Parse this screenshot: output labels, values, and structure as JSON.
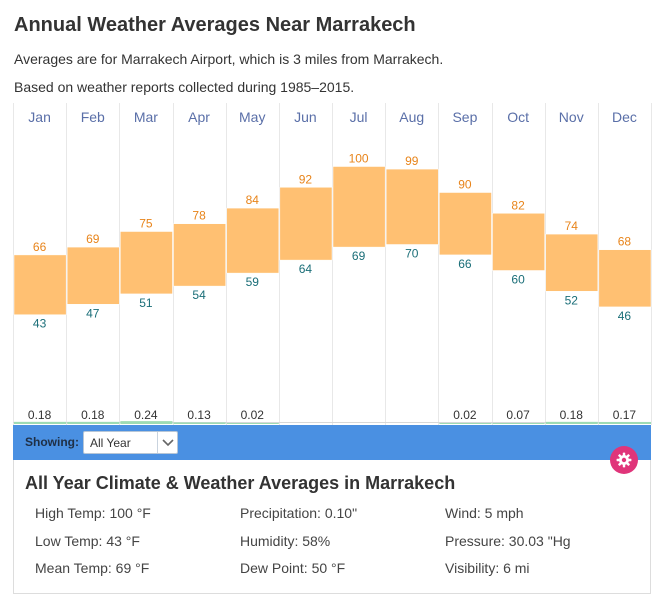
{
  "page": {
    "title": "Annual Weather Averages Near Marrakech",
    "subtitle1": "Averages are for Marrakech Airport, which is 3 miles from Marrakech.",
    "subtitle2": "Based on weather reports collected during 1985–2015."
  },
  "chart_data": {
    "type": "bar",
    "categories": [
      "Jan",
      "Feb",
      "Mar",
      "Apr",
      "May",
      "Jun",
      "Jul",
      "Aug",
      "Sep",
      "Oct",
      "Nov",
      "Dec"
    ],
    "series": [
      {
        "values": [
          66,
          69,
          75,
          78,
          84,
          92,
          100,
          99,
          90,
          82,
          74,
          68
        ]
      },
      {
        "values": [
          43,
          47,
          51,
          54,
          59,
          64,
          69,
          70,
          66,
          60,
          52,
          46
        ]
      },
      {
        "values": [
          "0.18",
          "0.18",
          "0.24",
          "0.13",
          "0.02",
          "",
          "",
          "",
          "0.02",
          "0.07",
          "0.18",
          "0.17"
        ]
      }
    ],
    "title": "",
    "xlabel": "",
    "ylabel": "",
    "grid": true,
    "colors": {
      "range_fill": "#ffc072",
      "high_label": "#e8841a",
      "low_label": "#1a6e78",
      "precip_fill": "#9edbb4",
      "month_label": "#5a6fa8",
      "grid": "#e8e8e8"
    }
  },
  "showing": {
    "label": "Showing:",
    "selected": "All Year"
  },
  "panel": {
    "title": "All Year Climate & Weather Averages in Marrakech",
    "stats": [
      "High Temp: 100 °F",
      "Precipitation: 0.10\"",
      "Wind: 5 mph",
      "Low Temp: 43 °F",
      "Humidity: 58%",
      "Pressure: 30.03 \"Hg",
      "Mean Temp: 69 °F",
      "Dew Point: 50 °F",
      "Visibility: 6 mi"
    ]
  },
  "icons": {
    "gear": "gear-icon",
    "dropdown": "chevron-down-icon"
  },
  "colors": {
    "accent_bar": "#4a90e2",
    "gear_button": "#e0357a"
  }
}
